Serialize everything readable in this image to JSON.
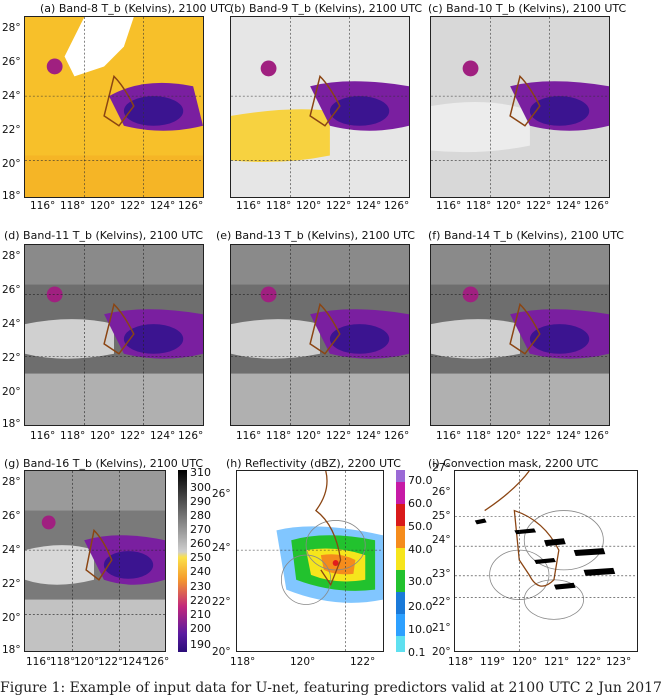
{
  "panels": [
    {
      "id": "a",
      "title": "(a)    Band-8 T_b (Kelvins), 2100 UTC",
      "yticks": [
        "28°",
        "26°",
        "24°",
        "22°",
        "20°",
        "18°"
      ],
      "xticks": [
        "116°",
        "118°",
        "120°",
        "122°",
        "124°",
        "126°"
      ]
    },
    {
      "id": "b",
      "title": "(b)    Band-9 T_b (Kelvins), 2100 UTC",
      "yticks": [],
      "xticks": [
        "116°",
        "118°",
        "120°",
        "122°",
        "124°",
        "126°"
      ]
    },
    {
      "id": "c",
      "title": "(c)    Band-10 T_b (Kelvins), 2100 UTC",
      "yticks": [],
      "xticks": [
        "116°",
        "118°",
        "120°",
        "122°",
        "124°",
        "126°"
      ]
    },
    {
      "id": "d",
      "title": "(d)    Band-11 T_b (Kelvins), 2100 UTC",
      "yticks": [
        "28°",
        "26°",
        "24°",
        "22°",
        "20°",
        "18°"
      ],
      "xticks": [
        "116°",
        "118°",
        "120°",
        "122°",
        "124°",
        "126°"
      ]
    },
    {
      "id": "e",
      "title": "(e)    Band-13 T_b (Kelvins), 2100 UTC",
      "yticks": [],
      "xticks": [
        "116°",
        "118°",
        "120°",
        "122°",
        "124°",
        "126°"
      ]
    },
    {
      "id": "f",
      "title": "(f)    Band-14 T_b (Kelvins), 2100 UTC",
      "yticks": [],
      "xticks": [
        "116°",
        "118°",
        "120°",
        "122°",
        "124°",
        "126°"
      ]
    },
    {
      "id": "g",
      "title": "(g)    Band-16 T_b (Kelvins), 2100 UTC",
      "yticks": [
        "28°",
        "26°",
        "24°",
        "22°",
        "20°",
        "18°"
      ],
      "xticks": [
        "116°",
        "118°",
        "120°",
        "122°",
        "124°",
        "126°"
      ]
    },
    {
      "id": "h",
      "title": "(h)    Reflectivity (dBZ), 2200 UTC",
      "yticks": [
        "26°",
        "24°",
        "22°",
        "20°"
      ],
      "xticks": [
        "118°",
        "120°",
        "122°"
      ]
    },
    {
      "id": "i",
      "title": "(i)    Convection mask, 2200 UTC",
      "yticks": [
        "27°",
        "26°",
        "25°",
        "24°",
        "23°",
        "22°",
        "21°",
        "20°"
      ],
      "xticks": [
        "118°",
        "119°",
        "120°",
        "121°",
        "122°",
        "123°"
      ]
    }
  ],
  "colorbar_tb": {
    "labels": [
      "310",
      "300",
      "290",
      "280",
      "270",
      "260",
      "250",
      "240",
      "230",
      "220",
      "210",
      "200",
      "190"
    ]
  },
  "colorbar_dbz": {
    "labels": [
      "70.0",
      "60.0",
      "50.0",
      "40.0",
      "30.0",
      "20.0",
      "10.0",
      "0.1"
    ]
  },
  "caption": "Figure 1: Example of input data for U-net, featuring predictors valid at 2100 UTC 2 Jun 2017"
}
